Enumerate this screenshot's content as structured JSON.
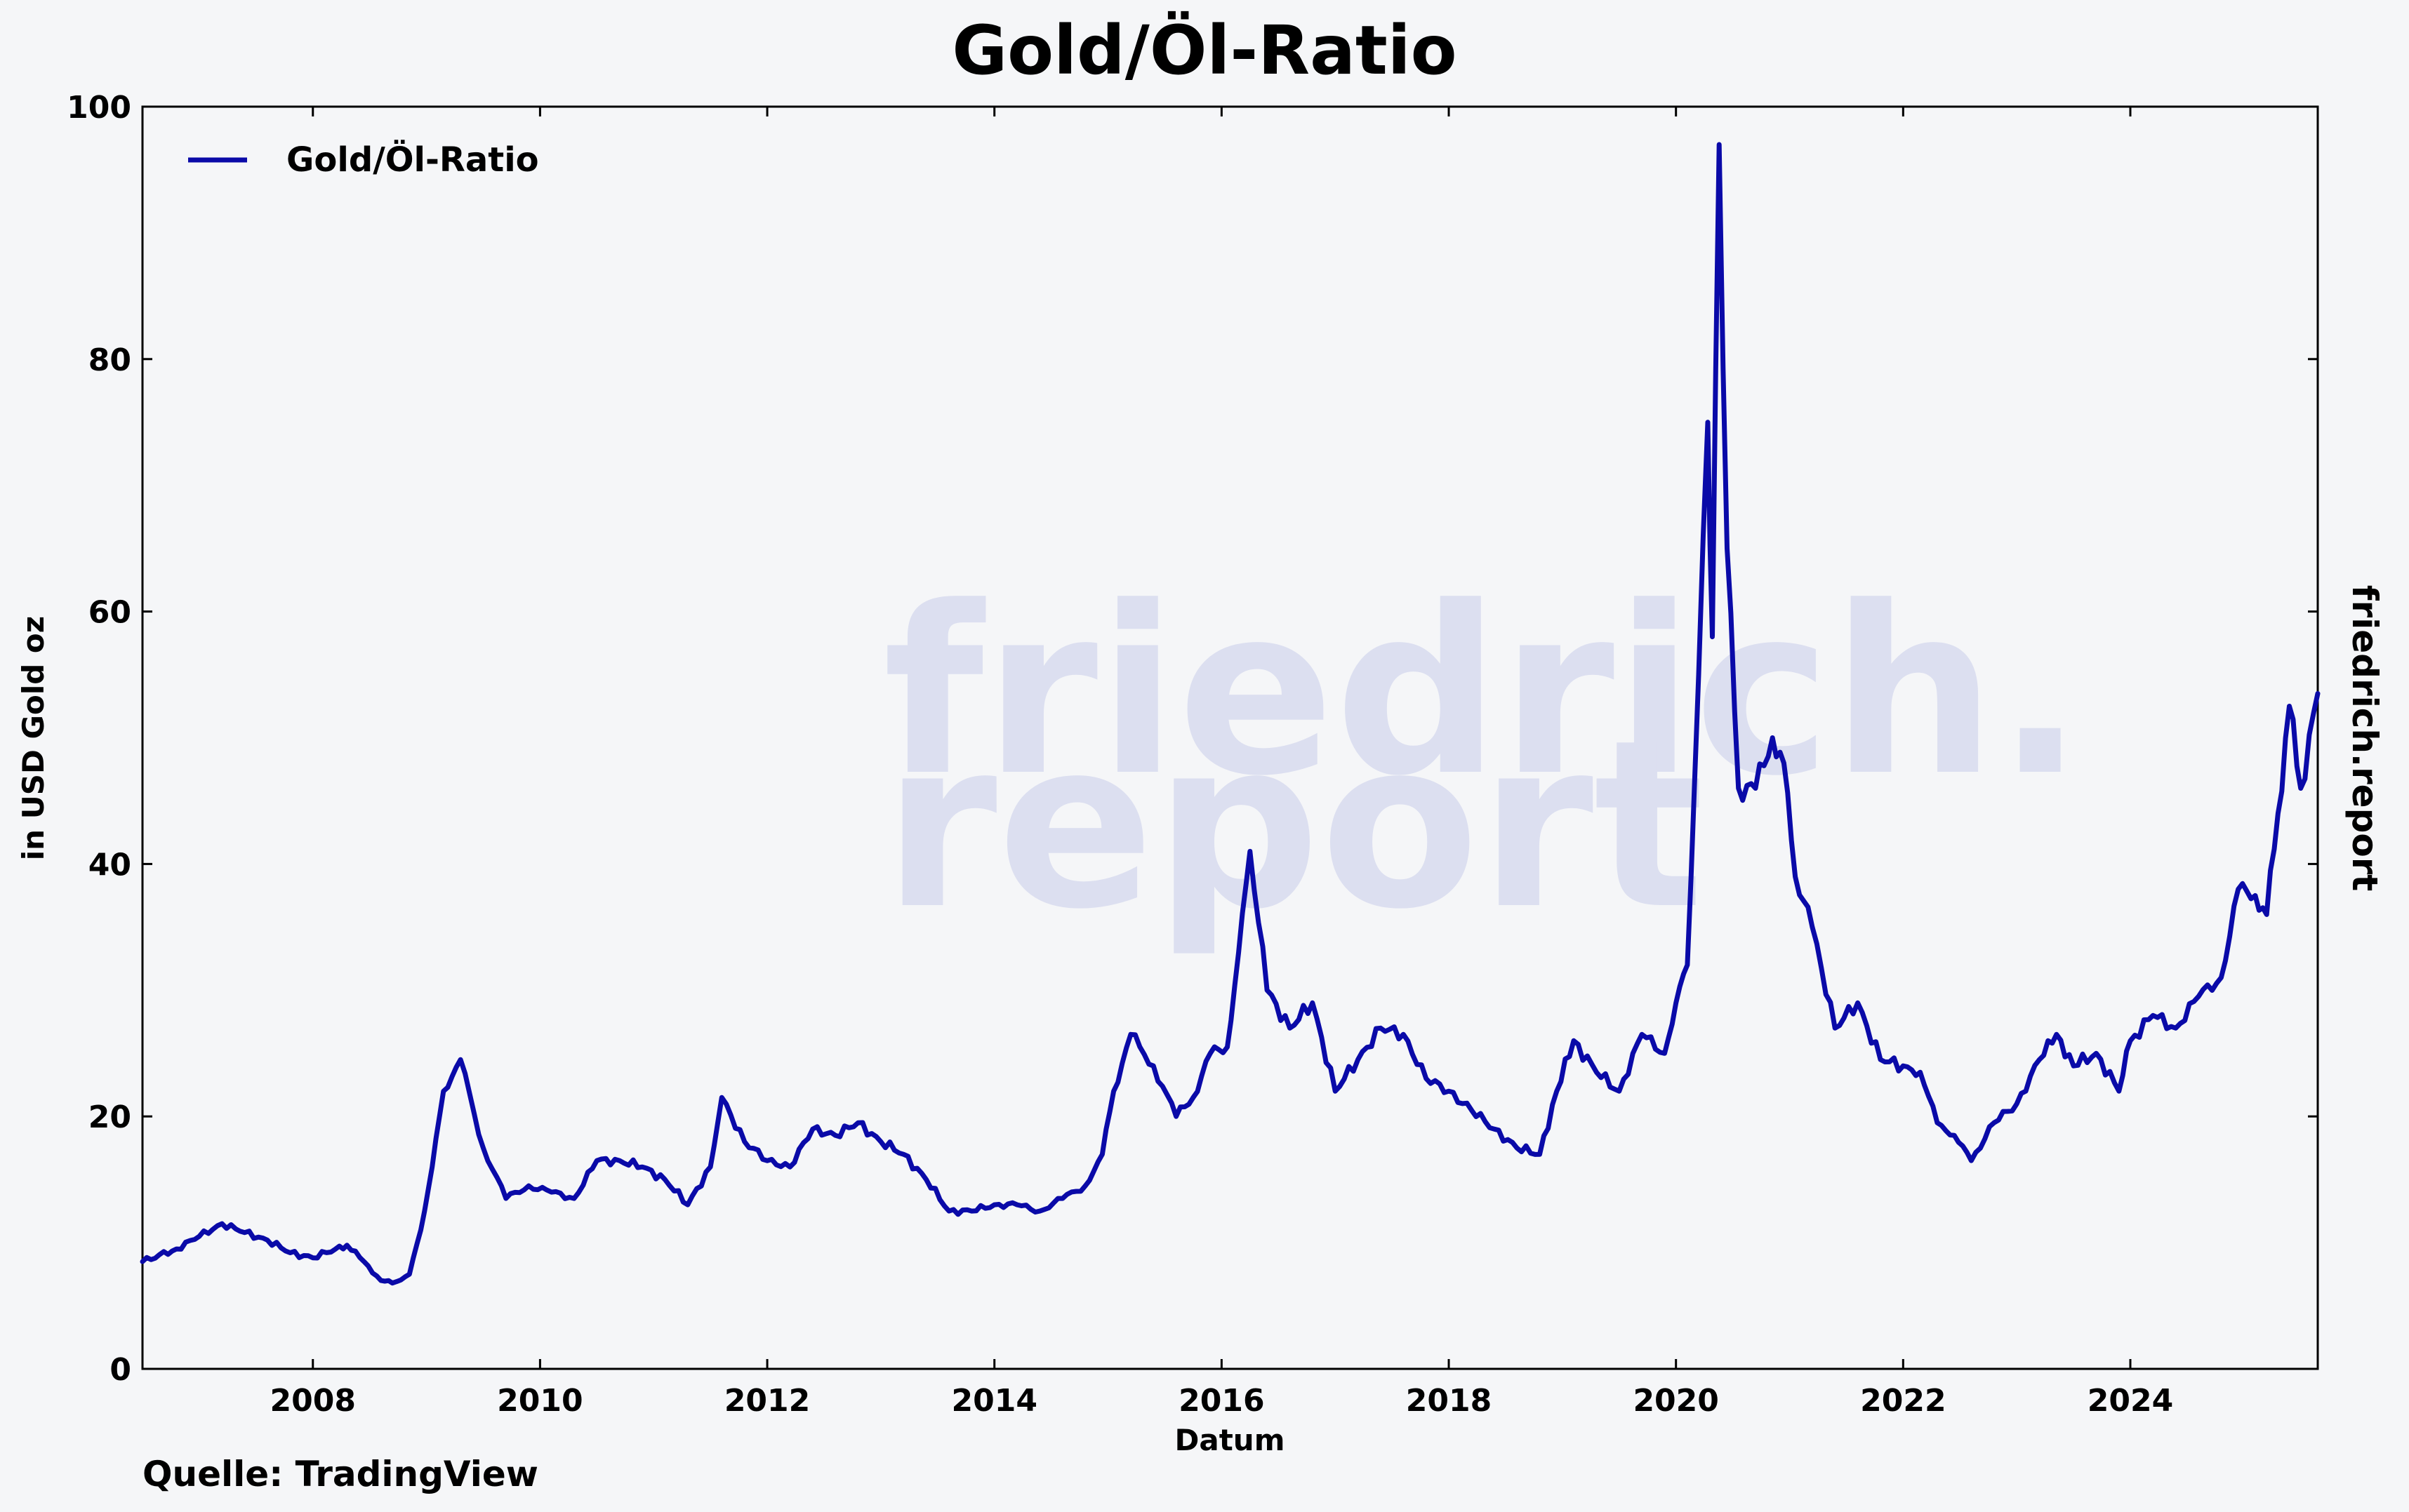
{
  "colors": {
    "background": "#f5f6f8",
    "line": "#0a0aa8",
    "watermark": "#dcdff0",
    "axis": "#000000"
  },
  "watermark": {
    "line1": "friedrich.",
    "line2": "report"
  },
  "side_brand": "friedrich.report",
  "source": "Quelle: TradingView",
  "chart_data": {
    "type": "line",
    "title": "Gold/Öl-Ratio",
    "xlabel": "Datum",
    "ylabel": "in USD Gold oz",
    "xlim": [
      2006.5,
      2025.65
    ],
    "ylim": [
      0,
      100
    ],
    "x_ticks": [
      2008,
      2010,
      2012,
      2014,
      2016,
      2018,
      2020,
      2022,
      2024
    ],
    "y_ticks": [
      0,
      20,
      40,
      60,
      80,
      100
    ],
    "grid": false,
    "legend": {
      "position": "top-left",
      "entries": [
        "Gold/Öl-Ratio"
      ]
    },
    "series": [
      {
        "name": "Gold/Öl-Ratio",
        "x": [
          2006.5,
          2006.8,
          2007.0,
          2007.2,
          2007.4,
          2007.6,
          2007.8,
          2008.0,
          2008.2,
          2008.3,
          2008.45,
          2008.6,
          2008.7,
          2008.85,
          2008.95,
          2009.05,
          2009.15,
          2009.3,
          2009.5,
          2009.7,
          2009.9,
          2010.1,
          2010.3,
          2010.5,
          2010.7,
          2010.9,
          2011.1,
          2011.3,
          2011.5,
          2011.6,
          2011.8,
          2012.0,
          2012.2,
          2012.4,
          2012.6,
          2012.8,
          2013.0,
          2013.2,
          2013.4,
          2013.6,
          2013.8,
          2014.0,
          2014.2,
          2014.4,
          2014.6,
          2014.8,
          2014.95,
          2015.05,
          2015.2,
          2015.4,
          2015.6,
          2015.75,
          2015.9,
          2016.05,
          2016.15,
          2016.25,
          2016.4,
          2016.6,
          2016.8,
          2017.0,
          2017.2,
          2017.4,
          2017.6,
          2017.8,
          2018.0,
          2018.2,
          2018.4,
          2018.6,
          2018.8,
          2018.95,
          2019.1,
          2019.3,
          2019.5,
          2019.7,
          2019.9,
          2020.0,
          2020.1,
          2020.2,
          2020.28,
          2020.32,
          2020.38,
          2020.45,
          2020.55,
          2020.7,
          2020.85,
          2020.95,
          2021.05,
          2021.2,
          2021.4,
          2021.6,
          2021.8,
          2022.0,
          2022.15,
          2022.3,
          2022.45,
          2022.6,
          2022.8,
          2023.0,
          2023.2,
          2023.35,
          2023.5,
          2023.7,
          2023.9,
          2024.0,
          2024.2,
          2024.4,
          2024.6,
          2024.8,
          2024.95,
          2025.1,
          2025.2,
          2025.3,
          2025.4,
          2025.5,
          2025.65
        ],
        "values": [
          8.5,
          9.5,
          10.5,
          11.5,
          10.8,
          10.2,
          9.2,
          8.8,
          9.5,
          9.8,
          8.5,
          7.0,
          6.8,
          7.5,
          11.0,
          16.0,
          22.0,
          24.5,
          17.5,
          13.5,
          14.5,
          14.0,
          13.5,
          16.5,
          16.5,
          16.0,
          15.0,
          13.0,
          16.0,
          21.5,
          18.0,
          16.5,
          16.0,
          19.0,
          18.5,
          19.5,
          18.0,
          17.0,
          15.0,
          12.5,
          12.5,
          13.0,
          13.0,
          12.5,
          13.5,
          14.5,
          17.0,
          22.0,
          26.5,
          24.0,
          20.0,
          21.5,
          25.0,
          25.5,
          33.0,
          41.0,
          30.0,
          27.0,
          29.0,
          22.0,
          24.5,
          27.0,
          26.5,
          23.0,
          22.0,
          20.5,
          19.0,
          17.5,
          17.0,
          22.0,
          26.0,
          23.5,
          22.0,
          26.5,
          25.0,
          29.0,
          32.0,
          55.0,
          75.0,
          58.0,
          97.0,
          65.0,
          46.0,
          46.0,
          50.0,
          48.0,
          39.0,
          35.0,
          27.0,
          29.0,
          24.5,
          24.0,
          23.5,
          19.5,
          18.5,
          16.5,
          19.5,
          21.0,
          24.5,
          26.5,
          24.0,
          25.0,
          22.0,
          26.0,
          28.0,
          27.0,
          29.5,
          31.0,
          38.0,
          37.5,
          36.0,
          44.0,
          52.5,
          46.0,
          53.5
        ]
      }
    ]
  }
}
